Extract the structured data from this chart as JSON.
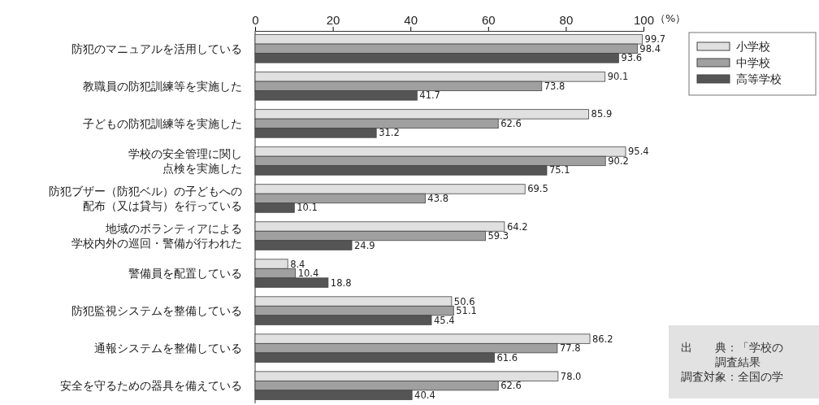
{
  "chart_data": {
    "type": "bar",
    "orientation": "horizontal",
    "xlabel": "（%）",
    "categories": [
      "防犯のマニュアルを活用している",
      "教職員の防犯訓練等を実施した",
      "子どもの防犯訓練等を実施した",
      "学校の安全管理に関し点検を実施した",
      "防犯ブザー（防犯ベル）の子どもへの配布（又は貸与）を行っている",
      "地域のボランティアによる学校内外の巡回・警備が行われた",
      "警備員を配置している",
      "防犯監視システムを整備している",
      "通報システムを整備している",
      "安全を守るための器具を備えている"
    ],
    "series": [
      {
        "name": "小学校",
        "color": "#e0e0e0",
        "values": [
          99.7,
          90.1,
          85.9,
          95.4,
          69.5,
          64.2,
          8.4,
          50.6,
          86.2,
          78.0
        ],
        "value_labels": [
          "99.7",
          "90.1",
          "85.9",
          "95.4",
          "69.5",
          "64.2",
          "8.4",
          "50.6",
          "86.2",
          "78.0"
        ]
      },
      {
        "name": "中学校",
        "color": "#a0a0a0",
        "values": [
          98.4,
          73.8,
          62.6,
          90.2,
          43.8,
          59.3,
          10.4,
          51.1,
          77.8,
          62.6
        ],
        "value_labels": [
          "98.4",
          "73.8",
          "62.6",
          "90.2",
          "43.8",
          "59.3",
          "10.4",
          "51.1",
          "77.8",
          "62.6"
        ]
      },
      {
        "name": "高等学校",
        "color": "#555555",
        "values": [
          93.6,
          41.7,
          31.2,
          75.1,
          10.1,
          24.9,
          18.8,
          45.4,
          61.6,
          40.4
        ],
        "value_labels": [
          "93.6",
          "41.7",
          "31.2",
          "75.1",
          "10.1",
          "24.9",
          "18.8",
          "45.4",
          "61.6",
          "40.4"
        ]
      }
    ],
    "xlim": [
      0,
      100
    ],
    "xticks": [
      0,
      20,
      40,
      60,
      80,
      100
    ],
    "legend": "top right",
    "grid": false,
    "annotations": [
      "出　　典：「学校の",
      "調査結果",
      "調査対象：全国の学"
    ]
  }
}
